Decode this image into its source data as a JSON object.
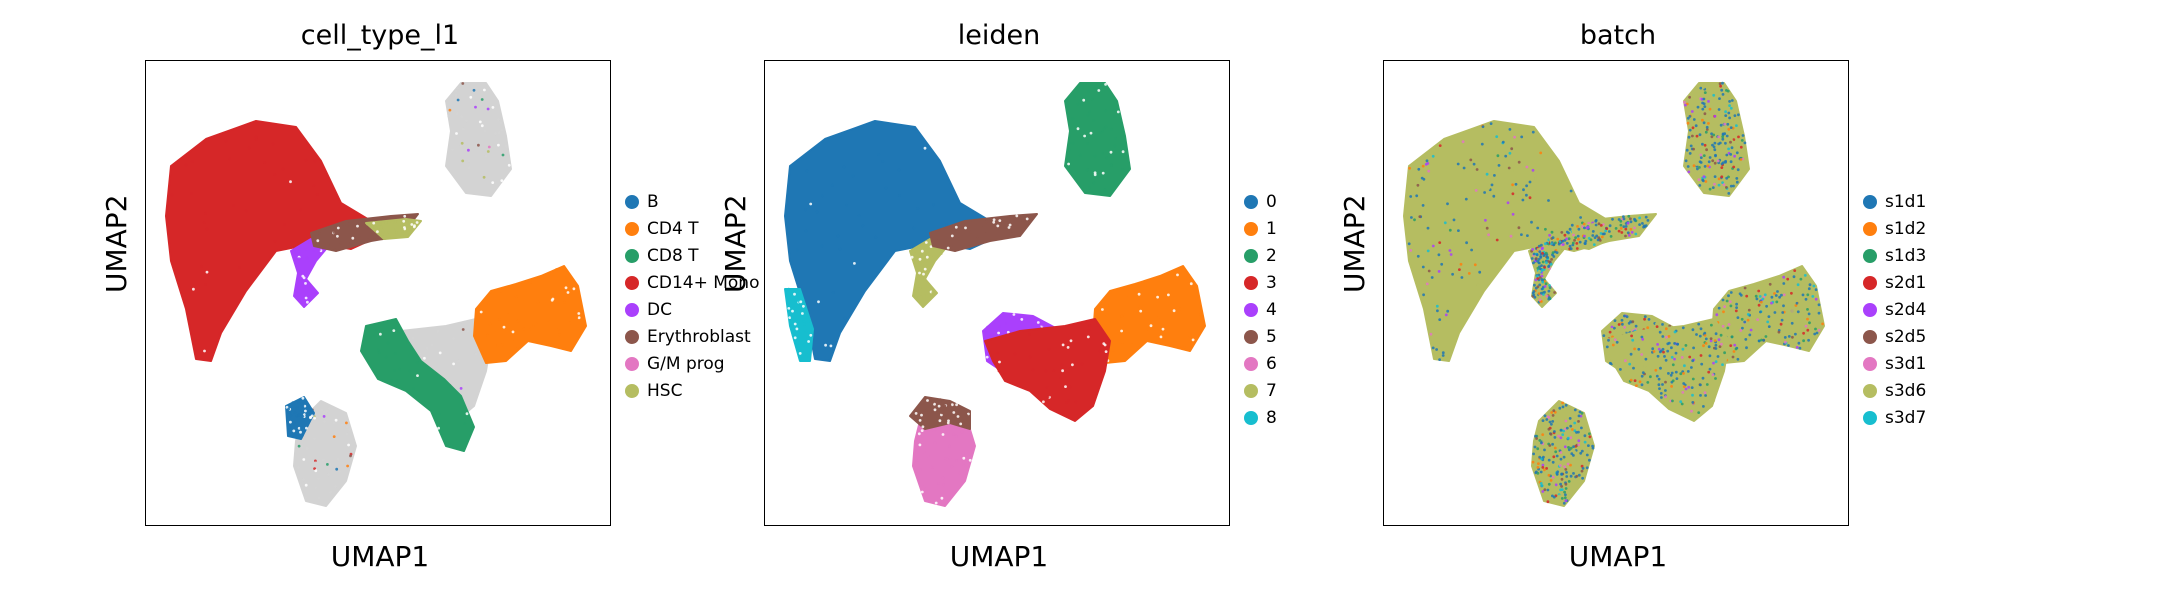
{
  "chart_data": [
    {
      "type": "scatter",
      "title": "cell_type_l1",
      "xlabel": "UMAP1",
      "ylabel": "UMAP2",
      "legend_placement": "right",
      "categories": [
        "B",
        "CD4 T",
        "CD8 T",
        "CD14+ Mono",
        "DC",
        "Erythroblast",
        "G/M prog",
        "HSC"
      ],
      "colors": [
        "#1f77b4",
        "#ff7f0e",
        "#279e68",
        "#d62728",
        "#aa40fc",
        "#8c564b",
        "#e377c2",
        "#b5bd61"
      ],
      "unlabeled_color": "#d3d3d3",
      "clusters": [
        {
          "label": "CD14+ Mono",
          "shape": "mono"
        },
        {
          "label": "DC",
          "shape": "dc"
        },
        {
          "label": "Erythroblast",
          "shape": "erythro"
        },
        {
          "label": "HSC",
          "shape": "hsc_tail"
        },
        {
          "label": "unlabeled",
          "shape": "top_blob"
        },
        {
          "label": "unlabeled",
          "shape": "center"
        },
        {
          "label": "unlabeled",
          "shape": "bottom_ring"
        },
        {
          "label": "CD4 T",
          "shape": "right_t"
        },
        {
          "label": "CD8 T",
          "shape": "green_arm"
        },
        {
          "label": "B",
          "shape": "bottom_b"
        }
      ]
    },
    {
      "type": "scatter",
      "title": "leiden",
      "xlabel": "UMAP1",
      "ylabel": "UMAP2",
      "legend_placement": "right",
      "categories": [
        "0",
        "1",
        "2",
        "3",
        "4",
        "5",
        "6",
        "7",
        "8"
      ],
      "colors": [
        "#1f77b4",
        "#ff7f0e",
        "#279e68",
        "#d62728",
        "#aa40fc",
        "#8c564b",
        "#e377c2",
        "#b5bd61",
        "#17becf"
      ],
      "clusters": [
        {
          "label": "0",
          "shape": "mono"
        },
        {
          "label": "8",
          "shape": "tail8"
        },
        {
          "label": "7",
          "shape": "dc"
        },
        {
          "label": "5",
          "shape": "erythro"
        },
        {
          "label": "2",
          "shape": "top_blob"
        },
        {
          "label": "1",
          "shape": "right_t"
        },
        {
          "label": "4",
          "shape": "left_nk"
        },
        {
          "label": "3",
          "shape": "center"
        },
        {
          "label": "6",
          "shape": "bottom_ring"
        },
        {
          "label": "5",
          "shape": "bottom_top"
        }
      ]
    },
    {
      "type": "scatter",
      "title": "batch",
      "xlabel": "UMAP1",
      "ylabel": "UMAP2",
      "legend_placement": "right",
      "categories": [
        "s1d1",
        "s1d2",
        "s1d3",
        "s2d1",
        "s2d4",
        "s2d5",
        "s3d1",
        "s3d6",
        "s3d7"
      ],
      "colors": [
        "#1f77b4",
        "#ff7f0e",
        "#279e68",
        "#d62728",
        "#aa40fc",
        "#8c564b",
        "#e377c2",
        "#b5bd61",
        "#17becf"
      ],
      "clusters": [
        {
          "label": "mixed",
          "shape": "mono"
        },
        {
          "label": "mixed",
          "shape": "dc"
        },
        {
          "label": "mixed",
          "shape": "erythro"
        },
        {
          "label": "mixed",
          "shape": "top_blob"
        },
        {
          "label": "mixed",
          "shape": "right_t"
        },
        {
          "label": "mixed",
          "shape": "left_nk"
        },
        {
          "label": "mixed",
          "shape": "center"
        },
        {
          "label": "mixed",
          "shape": "bottom_ring"
        }
      ]
    }
  ]
}
